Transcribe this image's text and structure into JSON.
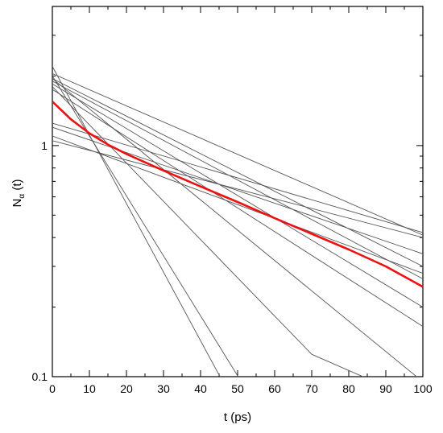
{
  "chart_data": {
    "type": "line",
    "xlabel": "t (ps)",
    "ylabel_main": "N",
    "ylabel_sub": "α",
    "ylabel_suffix": " (t)",
    "y_scale": "log",
    "xlim": [
      0,
      100
    ],
    "ylim": [
      0.1,
      4
    ],
    "x_ticks": [
      0,
      10,
      20,
      30,
      40,
      50,
      60,
      70,
      80,
      90,
      100
    ],
    "y_ticks": [
      {
        "value": 0.1,
        "label": "0.1"
      },
      {
        "value": 1,
        "label": "1"
      }
    ],
    "grid": false,
    "legend": "none",
    "colors": {
      "thin_series": "#555555",
      "mean_series": "#ee1111"
    },
    "thin_series": [
      {
        "x": [
          0,
          100
        ],
        "y": [
          2.05,
          0.41
        ]
      },
      {
        "x": [
          0,
          100
        ],
        "y": [
          1.95,
          0.3
        ]
      },
      {
        "x": [
          0,
          100
        ],
        "y": [
          1.9,
          0.265
        ]
      },
      {
        "x": [
          0,
          100
        ],
        "y": [
          1.85,
          0.2
        ]
      },
      {
        "x": [
          0,
          100
        ],
        "y": [
          1.75,
          0.165
        ]
      },
      {
        "x": [
          0,
          100
        ],
        "y": [
          1.25,
          0.42
        ]
      },
      {
        "x": [
          0,
          100
        ],
        "y": [
          1.2,
          0.34
        ]
      },
      {
        "x": [
          0,
          100
        ],
        "y": [
          1.05,
          0.4
        ]
      },
      {
        "x": [
          0,
          100
        ],
        "y": [
          1.1,
          0.28
        ]
      },
      {
        "x": [
          0,
          100
        ],
        "y": [
          1.95,
          0.095
        ]
      },
      {
        "x": [
          0,
          46
        ],
        "y": [
          2.2,
          0.095
        ]
      },
      {
        "x": [
          0,
          51
        ],
        "y": [
          2.0,
          0.095
        ]
      },
      {
        "x": [
          0,
          70,
          87
        ],
        "y": [
          1.8,
          0.125,
          0.095
        ]
      }
    ],
    "mean_series": {
      "x": [
        0,
        5,
        10,
        15,
        20,
        30,
        40,
        50,
        60,
        70,
        80,
        90,
        100
      ],
      "y": [
        1.55,
        1.3,
        1.13,
        1.01,
        0.92,
        0.78,
        0.665,
        0.57,
        0.485,
        0.415,
        0.355,
        0.3,
        0.245
      ]
    }
  }
}
